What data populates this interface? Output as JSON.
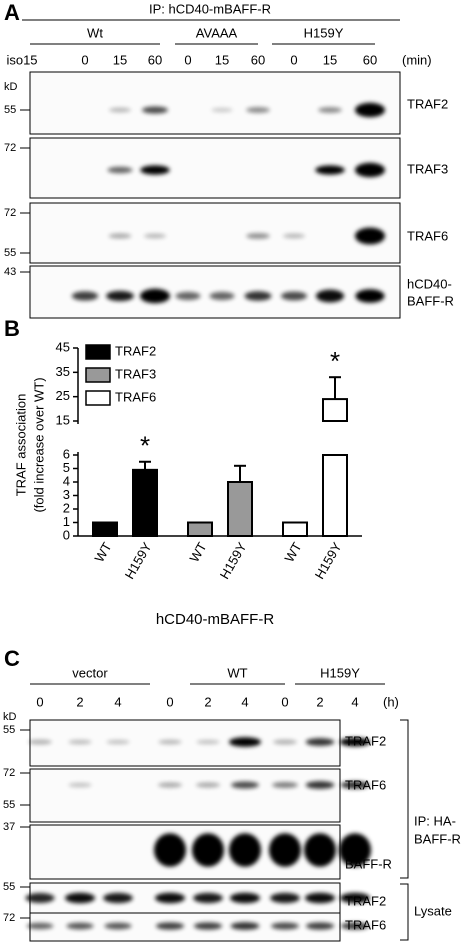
{
  "panel_a": {
    "letter": "A",
    "ip_label": "IP: hCD40-mBAFF-R",
    "groups": [
      "Wt",
      "AVAAA",
      "H159Y"
    ],
    "lanes": [
      "iso15",
      "0",
      "15",
      "60",
      "0",
      "15",
      "60",
      "0",
      "15",
      "60"
    ],
    "time_unit": "(min)",
    "kd_label": "kD",
    "markers": [
      55,
      72,
      72,
      55,
      43
    ],
    "blot_labels": [
      [
        "TRAF2"
      ],
      [
        "TRAF3"
      ],
      [
        "TRAF6"
      ],
      [
        "hCD40-",
        "BAFF-R"
      ]
    ]
  },
  "chart_data": {
    "type": "bar",
    "letter": "B",
    "ylabel": [
      "TRAF association",
      "(fold increase over WT)"
    ],
    "xlabel": "hCD40-mBAFF-R",
    "categories": [
      "WT",
      "H159Y"
    ],
    "series": [
      {
        "name": "TRAF2",
        "color": "#000000",
        "values": [
          1,
          4.9
        ],
        "errors": [
          null,
          0.6
        ],
        "significance": [
          null,
          "*"
        ]
      },
      {
        "name": "TRAF3",
        "color": "#999999",
        "values": [
          1,
          4.0
        ],
        "errors": [
          null,
          1.2
        ],
        "significance": [
          null,
          null
        ]
      },
      {
        "name": "TRAF6",
        "color": "#ffffff",
        "values": [
          1,
          24
        ],
        "errors": [
          null,
          9
        ],
        "significance": [
          null,
          "*"
        ]
      }
    ],
    "ylim": [
      0,
      45
    ],
    "y_break": [
      6,
      15
    ],
    "yticks": [
      0,
      1,
      2,
      3,
      4,
      5,
      6,
      15,
      25,
      35,
      45
    ],
    "legend": "upper left"
  },
  "panel_c": {
    "letter": "C",
    "groups": [
      "vector",
      "WT",
      "H159Y"
    ],
    "lanes": [
      "0",
      "2",
      "4",
      "0",
      "2",
      "4",
      "0",
      "2",
      "4"
    ],
    "time_unit": "(h)",
    "kd_label": "kD",
    "markers": [
      55,
      72,
      55,
      37,
      55,
      72
    ],
    "blot_labels": [
      "TRAF2",
      "TRAF6",
      "BAFF-R",
      "TRAF2",
      "TRAF6"
    ],
    "brackets": [
      [
        "IP: HA-",
        "BAFF-R"
      ],
      [
        "Lysate"
      ]
    ]
  }
}
